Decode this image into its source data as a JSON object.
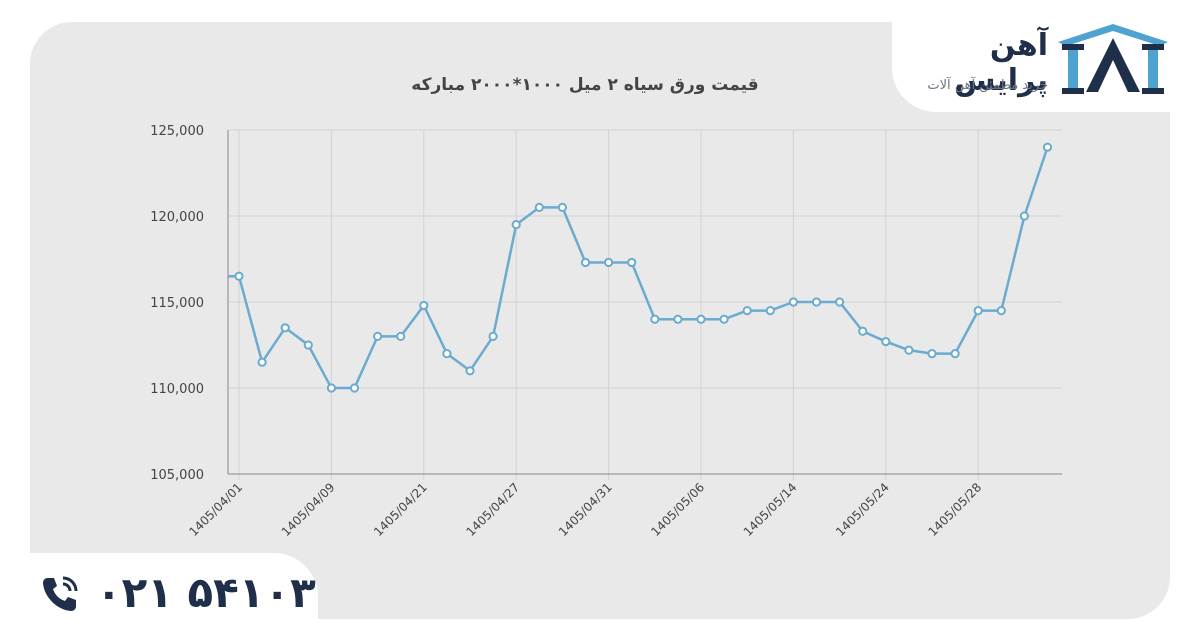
{
  "header": {
    "brand_name": "آهن پرایس",
    "brand_tagline": "خرید مطمئن آهن آلات",
    "logo_icon": "ahanprice-logo-icon"
  },
  "footer": {
    "phone_icon": "phone-icon",
    "phone_number": "۰۲۱ ۵۴۱۰۳"
  },
  "colors": {
    "line": "#6aabcf",
    "grid": "#d2d2d2",
    "brand_dark": "#1f2f4a",
    "brand_accent": "#4fa3d1"
  },
  "chart_data": {
    "type": "line",
    "title": "قیمت ورق سیاه ۲ میل ۱۰۰۰*۲۰۰۰ مبارکه",
    "xlabel": "",
    "ylabel": "",
    "ylim": [
      105000,
      125000
    ],
    "yticks": [
      "105,000",
      "110,000",
      "115,000",
      "120,000",
      "125,000"
    ],
    "ytick_values": [
      105000,
      110000,
      115000,
      120000,
      125000
    ],
    "xtick_labels": [
      "1405/04/01",
      "1405/04/09",
      "1405/04/21",
      "1405/04/27",
      "1405/04/31",
      "1405/05/06",
      "1405/05/14",
      "1405/05/24",
      "1405/05/28"
    ],
    "xtick_point_index": [
      0,
      4,
      8,
      12,
      16,
      20,
      24,
      28,
      32
    ],
    "grid": true,
    "legend": "none",
    "series": [
      {
        "values": [
          116500,
          111500,
          113500,
          112500,
          110000,
          110000,
          113000,
          113000,
          114800,
          112000,
          111000,
          113000,
          119500,
          120500,
          120500,
          117300,
          117300,
          117300,
          114000,
          114000,
          114000,
          114000,
          114500,
          114500,
          115000,
          115000,
          115000,
          113300,
          112700,
          112200,
          112000,
          112000,
          114500,
          114500,
          120000,
          124000
        ]
      }
    ]
  }
}
